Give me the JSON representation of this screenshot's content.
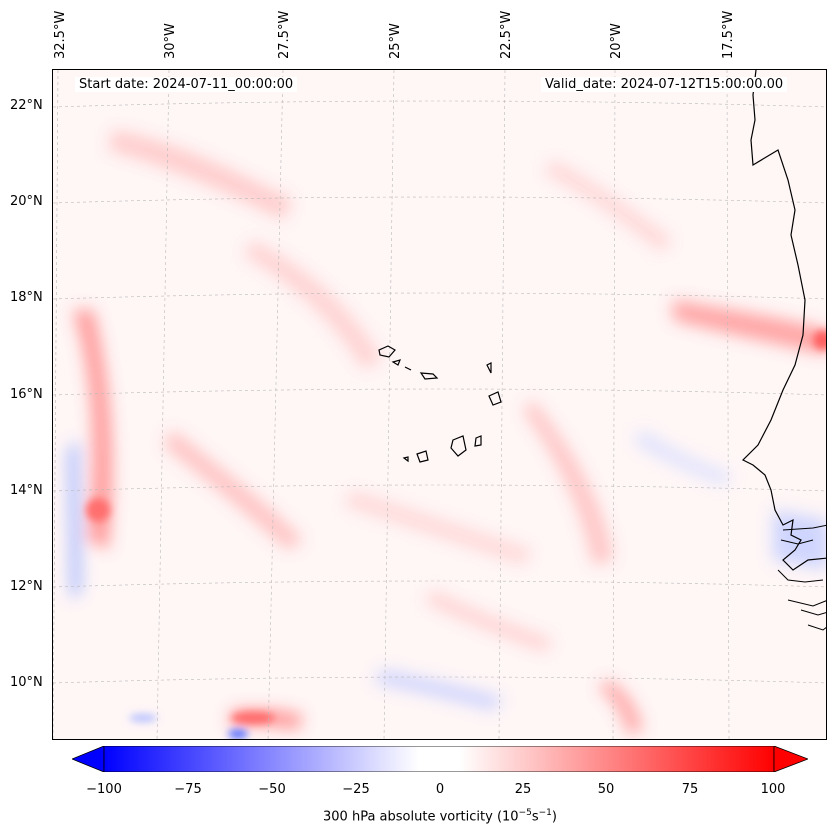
{
  "map": {
    "title_left": "Start date: 2024-07-11_00:00:00",
    "title_right": "Valid_date: 2024-07-12T15:00:00.00",
    "lon_labels": [
      "32.5°W",
      "30°W",
      "27.5°W",
      "25°W",
      "22.5°W",
      "20°W",
      "17.5°W"
    ],
    "lat_labels": [
      "22°N",
      "20°N",
      "18°N",
      "16°N",
      "14°N",
      "12°N",
      "10°N"
    ],
    "field": "300 hPa absolute vorticity",
    "colormap": [
      "#0000ff",
      "#ffffff",
      "#ff0000"
    ],
    "features": [
      "Cape Verde islands",
      "West African coastline"
    ]
  },
  "colorbar": {
    "label_main": "300 hPa absolute vorticity (10",
    "label_exp1": "−5",
    "label_mid": "s",
    "label_exp2": "−1",
    "label_end": ")",
    "ticks": [
      "−100",
      "−75",
      "−50",
      "−25",
      "0",
      "25",
      "50",
      "75",
      "100"
    ],
    "range": [
      -100,
      100
    ],
    "levels": 41
  }
}
